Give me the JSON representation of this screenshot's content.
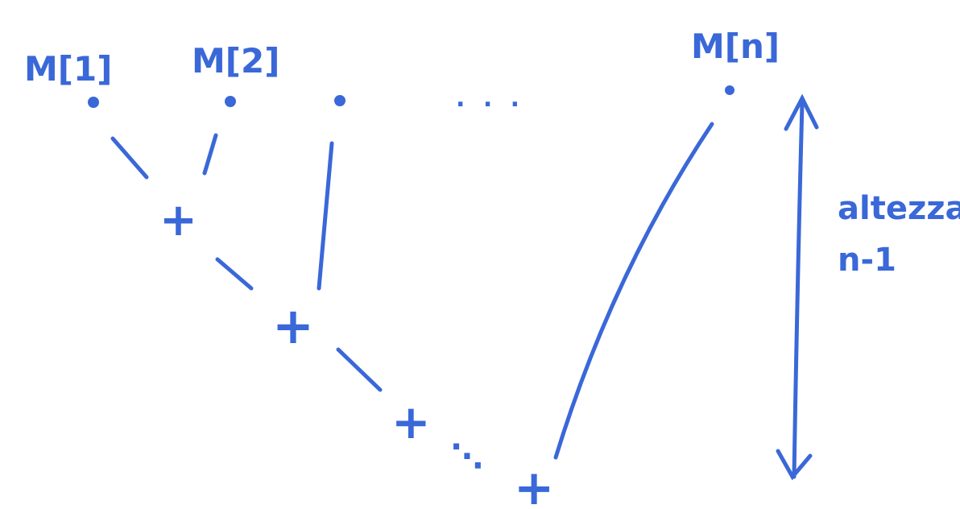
{
  "labels": {
    "m1": "M[1]",
    "m2": "M[2]",
    "mn": "M[n]",
    "height_word": "altezza",
    "height_value": "n-1"
  },
  "glyphs": {
    "ellipsis_top": ". . .",
    "ellipsis_bottom": "⋱",
    "plus": "+"
  },
  "colors": {
    "ink": "#3a68d8",
    "background": "#ffffff"
  }
}
